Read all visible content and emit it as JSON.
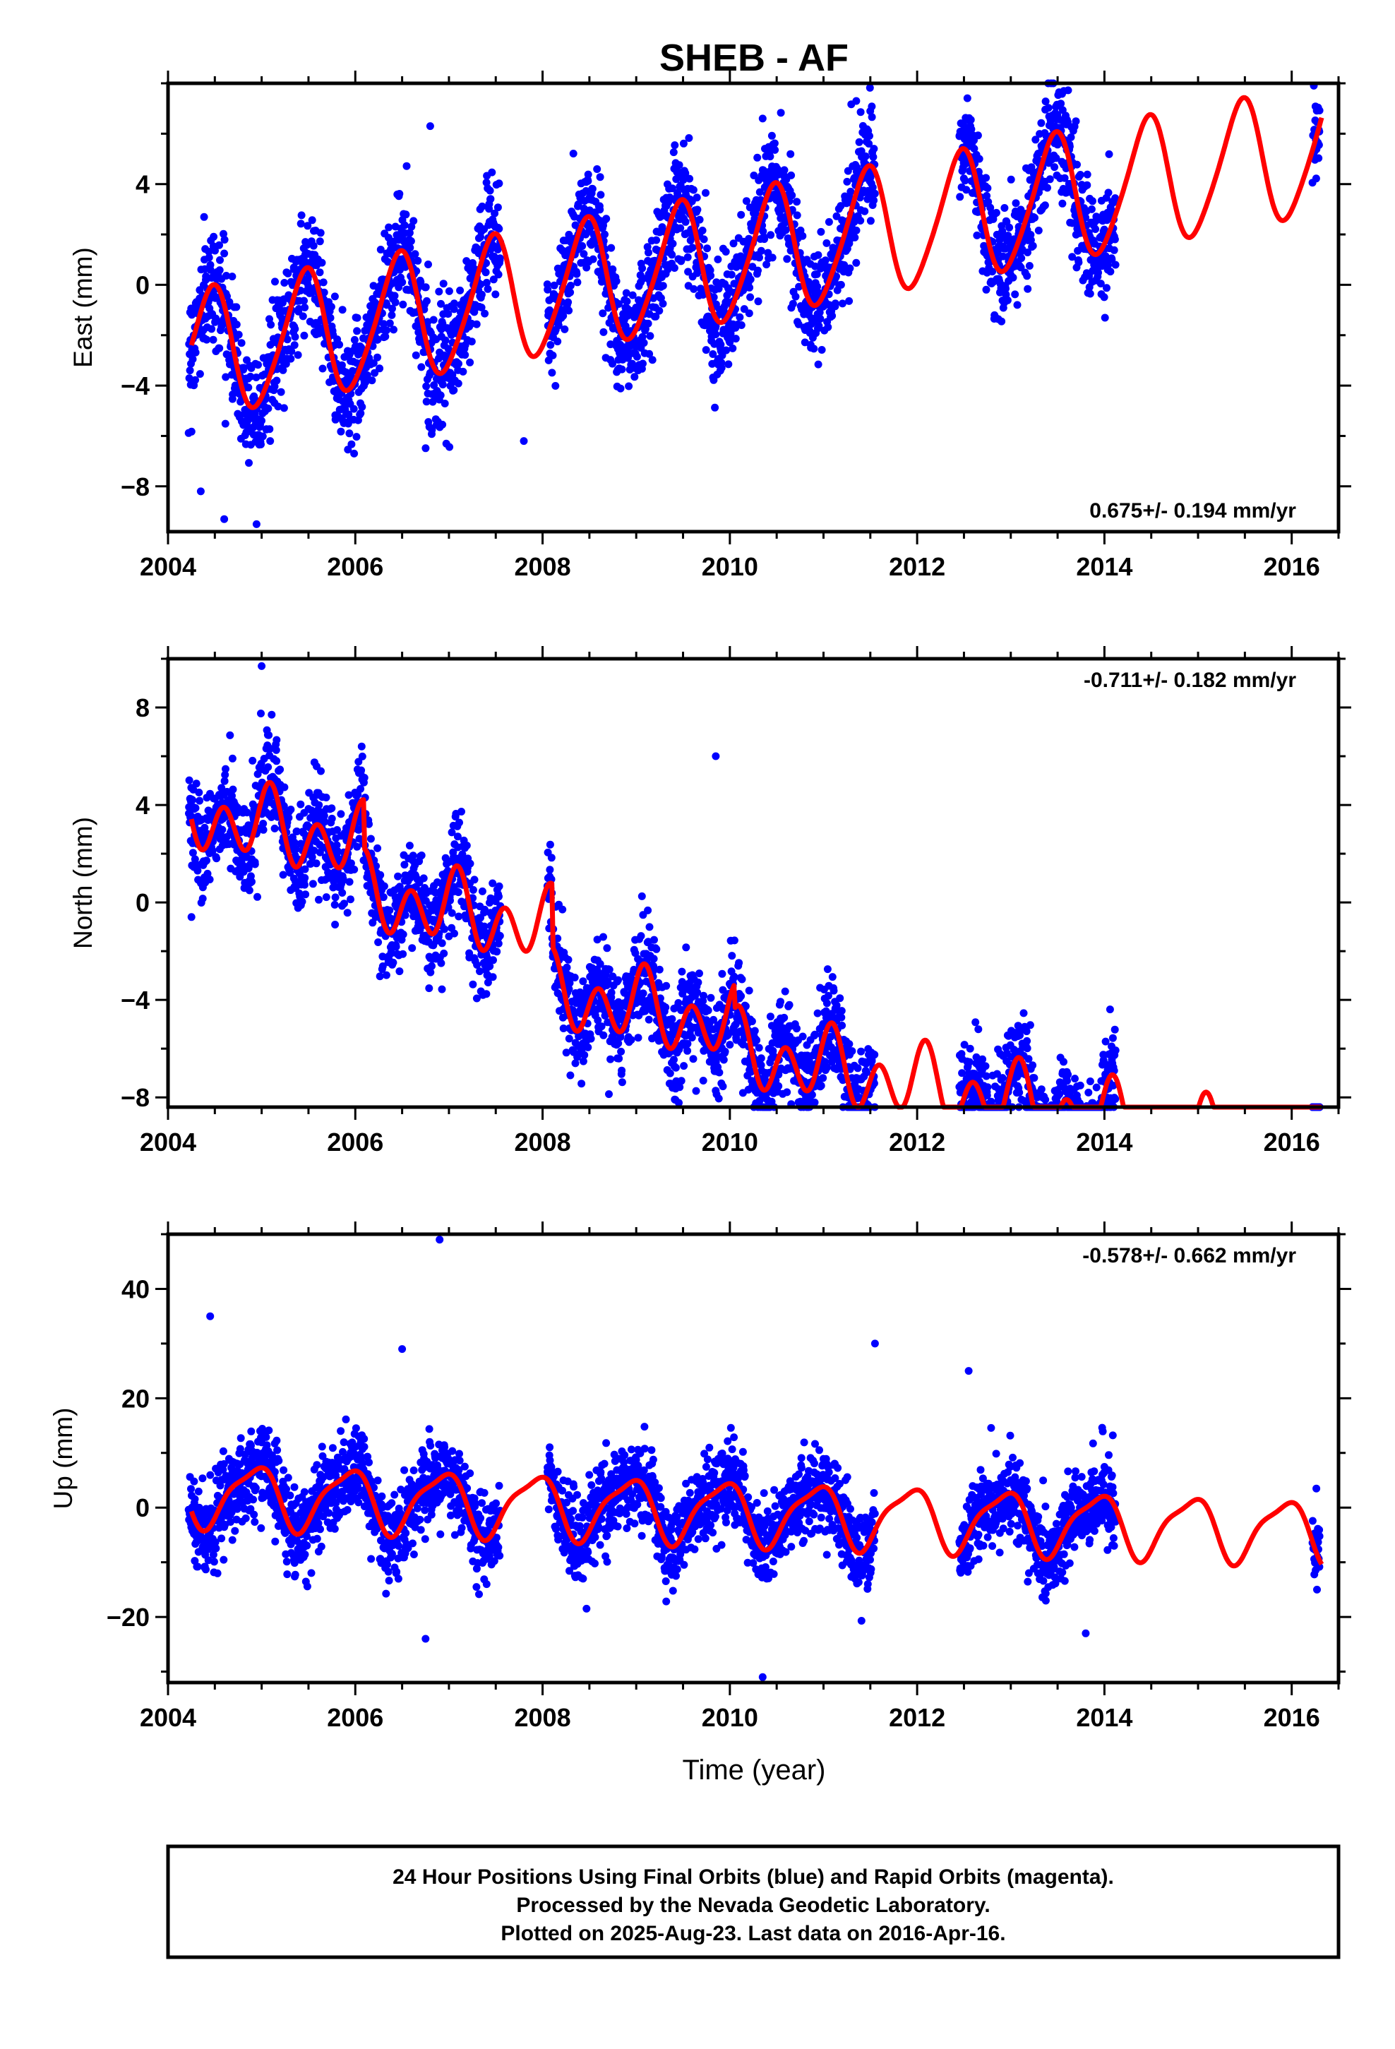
{
  "chart_data": {
    "title": "SHEB - AF",
    "xlabel": "Time (year)",
    "colors": {
      "data": "#0000ff",
      "model": "#ff0000",
      "axis": "#000000"
    },
    "panels": [
      {
        "type": "scatter",
        "ylabel": "East (mm)",
        "rate": "0.675+/- 0.194 mm/yr",
        "rate_position": "bottom-right",
        "xlim": [
          2004.0,
          2016.5
        ],
        "ylim": [
          -9.8,
          8.0
        ],
        "xticks": [
          2004,
          2006,
          2008,
          2010,
          2012,
          2014,
          2016
        ],
        "xtick_labels": [
          "2004",
          "2006",
          "2008",
          "2010",
          "2012",
          "2014",
          "2016"
        ],
        "yticks": [
          -8,
          -4,
          0,
          4
        ],
        "ytick_labels": [
          "−8",
          "−4",
          "0",
          "4"
        ],
        "model": {
          "trend": 0.675,
          "offset": -2.8,
          "ref_year": 2004.3,
          "annual_amp": 2.5,
          "annual_phase": 5.0,
          "semiannual_amp": 0.35,
          "semiannual_phase": 0.9
        },
        "outliers": [
          {
            "x": 2004.35,
            "y": -8.2
          },
          {
            "x": 2004.6,
            "y": -9.3
          },
          {
            "x": 2006.8,
            "y": 6.3
          },
          {
            "x": 2007.8,
            "y": -6.2
          },
          {
            "x": 2011.35,
            "y": 7.3
          },
          {
            "x": 2010.35,
            "y": 6.6
          }
        ],
        "data_ranges": [
          [
            2004.22,
            2007.55
          ],
          [
            2008.05,
            2011.55
          ],
          [
            2012.45,
            2014.12
          ],
          [
            2016.22,
            2016.3
          ]
        ],
        "noise": 1.5
      },
      {
        "type": "scatter",
        "ylabel": "North (mm)",
        "rate": "-0.711+/- 0.182 mm/yr",
        "rate_position": "top-right",
        "xlim": [
          2004.0,
          2016.5
        ],
        "ylim": [
          -8.4,
          10.0
        ],
        "xticks": [
          2004,
          2006,
          2008,
          2010,
          2012,
          2014,
          2016
        ],
        "xtick_labels": [
          "2004",
          "2006",
          "2008",
          "2010",
          "2012",
          "2014",
          "2016"
        ],
        "yticks": [
          -8,
          -4,
          0,
          4,
          8
        ],
        "ytick_labels": [
          "−8",
          "−4",
          "0",
          "4",
          "8"
        ],
        "model": {
          "trend": -0.711,
          "offset": 3.6,
          "ref_year": 2004.3,
          "annual_amp": 0.7,
          "annual_phase": 1.2,
          "semiannual_amp": 1.2,
          "semiannual_phase": 0.4
        },
        "steps": [
          {
            "x": 2006.1,
            "dy": -2.0
          },
          {
            "x": 2008.1,
            "dy": -2.6
          },
          {
            "x": 2010.05,
            "dy": -1.0
          }
        ],
        "outliers": [
          {
            "x": 2004.25,
            "y": -0.6
          },
          {
            "x": 2005.0,
            "y": 9.7
          },
          {
            "x": 2008.35,
            "y": -6.6
          },
          {
            "x": 2009.85,
            "y": 6.0
          },
          {
            "x": 2010.4,
            "y": -8.1
          },
          {
            "x": 2013.25,
            "y": -7.2
          }
        ],
        "data_ranges": [
          [
            2004.22,
            2007.55
          ],
          [
            2008.05,
            2011.55
          ],
          [
            2012.45,
            2014.12
          ],
          [
            2016.22,
            2016.3
          ]
        ],
        "noise": 1.35
      },
      {
        "type": "scatter",
        "ylabel": "Up (mm)",
        "rate": "-0.578+/- 0.662 mm/yr",
        "rate_position": "top-right",
        "xlim": [
          2004.0,
          2016.5
        ],
        "ylim": [
          -32.0,
          50.0
        ],
        "xticks": [
          2004,
          2006,
          2008,
          2010,
          2012,
          2014,
          2016
        ],
        "xtick_labels": [
          "2004",
          "2006",
          "2008",
          "2010",
          "2012",
          "2014",
          "2016"
        ],
        "yticks": [
          -20,
          0,
          20,
          40
        ],
        "ytick_labels": [
          "−20",
          "0",
          "20",
          "40"
        ],
        "model": {
          "trend": -0.578,
          "offset": 2.5,
          "ref_year": 2004.3,
          "annual_amp": 5.5,
          "annual_phase": 2.1,
          "semiannual_amp": 1.5,
          "semiannual_phase": 0.3
        },
        "outliers": [
          {
            "x": 2004.45,
            "y": 35.0
          },
          {
            "x": 2006.5,
            "y": 29.0
          },
          {
            "x": 2006.9,
            "y": 49.0
          },
          {
            "x": 2006.75,
            "y": -24.0
          },
          {
            "x": 2010.35,
            "y": -31.0
          },
          {
            "x": 2011.55,
            "y": 30.0
          },
          {
            "x": 2012.55,
            "y": 25.0
          },
          {
            "x": 2013.8,
            "y": -23.0
          },
          {
            "x": 2016.27,
            "y": -15.0
          }
        ],
        "data_ranges": [
          [
            2004.22,
            2007.55
          ],
          [
            2008.05,
            2011.55
          ],
          [
            2012.45,
            2014.12
          ],
          [
            2016.22,
            2016.3
          ]
        ],
        "noise": 5.0
      }
    ]
  },
  "footer": {
    "line1": "24 Hour Positions Using Final Orbits (blue) and Rapid Orbits (magenta).",
    "line2": "Processed by the Nevada Geodetic Laboratory.",
    "line3": "Plotted on 2025-Aug-23. Last data on 2016-Apr-16."
  }
}
